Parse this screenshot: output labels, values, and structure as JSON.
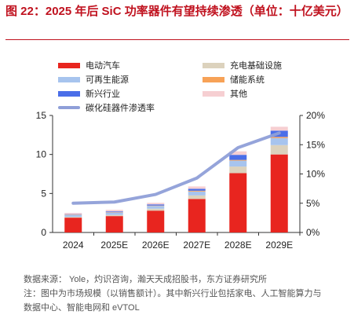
{
  "title": "图 22：2025 年后 SiC 功率器件有望持续渗透（单位：十亿美元）",
  "legend": [
    {
      "label": "电动汽车",
      "color": "#e8251f",
      "kind": "bar"
    },
    {
      "label": "充电基础设施",
      "color": "#dcd2bd",
      "kind": "bar"
    },
    {
      "label": "可再生能源",
      "color": "#a7c4ee",
      "kind": "bar"
    },
    {
      "label": "储能系统",
      "color": "#f7a257",
      "kind": "bar"
    },
    {
      "label": "新兴行业",
      "color": "#4a6ee8",
      "kind": "bar"
    },
    {
      "label": "其他",
      "color": "#f6cfd2",
      "kind": "bar"
    },
    {
      "label": "碳化硅器件渗透率",
      "color": "#8f9fd8",
      "kind": "line"
    }
  ],
  "chart_data": {
    "type": "bar",
    "stacked": true,
    "categories": [
      "2024",
      "2025E",
      "2026E",
      "2027E",
      "2028E",
      "2029E"
    ],
    "series": [
      {
        "name": "电动汽车",
        "values": [
          1.9,
          2.1,
          2.8,
          4.3,
          7.6,
          10.0
        ]
      },
      {
        "name": "充电基础设施",
        "values": [
          0.1,
          0.15,
          0.25,
          0.45,
          0.85,
          1.2
        ]
      },
      {
        "name": "可再生能源",
        "values": [
          0.25,
          0.3,
          0.35,
          0.5,
          0.75,
          0.9
        ]
      },
      {
        "name": "储能系统",
        "values": [
          0.05,
          0.05,
          0.05,
          0.1,
          0.1,
          0.15
        ]
      },
      {
        "name": "新兴行业",
        "values": [
          0.05,
          0.1,
          0.15,
          0.25,
          0.65,
          0.8
        ]
      },
      {
        "name": "其他",
        "values": [
          0.15,
          0.2,
          0.2,
          0.3,
          0.45,
          0.5
        ]
      }
    ],
    "line": {
      "name": "碳化硅器件渗透率",
      "values": [
        0.05,
        0.052,
        0.065,
        0.093,
        0.145,
        0.17
      ]
    },
    "y_left": {
      "min": 0,
      "max": 15,
      "ticks": [
        0,
        5,
        10,
        15
      ]
    },
    "y_right": {
      "min": 0,
      "max": 0.2,
      "ticks": [
        "0%",
        "5%",
        "10%",
        "15%",
        "20%"
      ]
    },
    "legend_placement": "top"
  },
  "source_lines": [
    "数据来源：  Yole，灼识咨询，瀚天天成招股书，东方证券研究所",
    "注：图中为市场规模（以销售额计）。其中新兴行业包括家电、人工智能算力与",
    "数据中心、智能电网和 eVTOL"
  ]
}
